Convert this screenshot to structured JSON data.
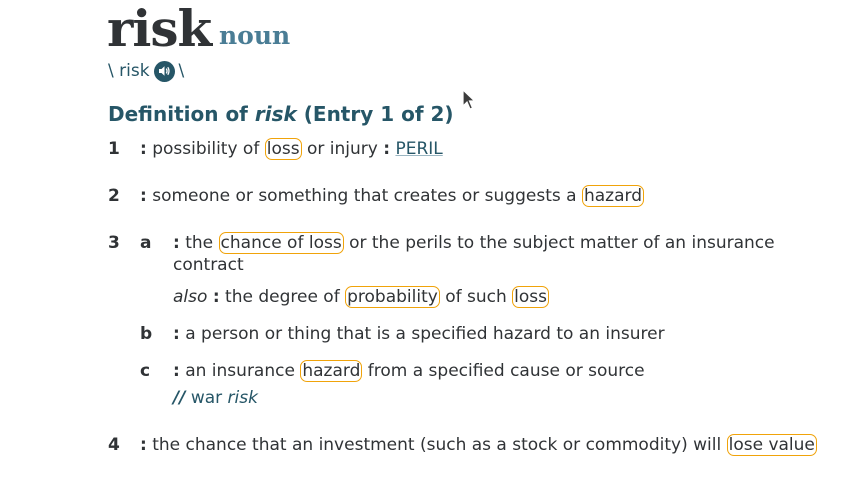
{
  "entry": {
    "headword": "risk",
    "part_of_speech": "noun",
    "pron_open": "\\ risk",
    "pron_close": "\\",
    "heading_prefix": "Definition of ",
    "heading_word": "risk",
    "heading_suffix": " (Entry 1 of 2)"
  },
  "senses": {
    "s1": {
      "num": "1",
      "colon": ":",
      "t1": " possibility of ",
      "h1": "loss",
      "t2": " or injury ",
      "colon2": ":",
      "xref": "PERIL"
    },
    "s2": {
      "num": "2",
      "colon": ":",
      "t1": " someone or something that creates or suggests a ",
      "h1": "hazard"
    },
    "s3a": {
      "num": "3",
      "letter": "a",
      "colon": ":",
      "t1": " the ",
      "h1": "chance of loss",
      "t2": " or the perils to the subject matter of an insurance",
      "t3": "contract"
    },
    "s3a_also": {
      "also": "also",
      "colon": ":",
      "t1": " the degree of ",
      "h1": "probability",
      "t2": " of such ",
      "h2": "loss"
    },
    "s3b": {
      "letter": "b",
      "colon": ":",
      "t1": " a person or thing that is a specified hazard to an insurer"
    },
    "s3c": {
      "letter": "c",
      "colon": ":",
      "t1": " an insurance ",
      "h1": "hazard",
      "t2": " from a specified cause or source",
      "usage_mark": "//",
      "usage_t1": " war ",
      "usage_t2": "risk"
    },
    "s4": {
      "num": "4",
      "colon": ":",
      "t1": " the chance that an investment (such as a stock or commodity) will ",
      "h1": "lose value"
    }
  },
  "icons": {
    "speaker": "speaker-icon",
    "cursor": "mouse-pointer-icon"
  },
  "colors": {
    "accent": "#265667",
    "highlight": "#f0a30a",
    "pos": "#4a7d95"
  }
}
